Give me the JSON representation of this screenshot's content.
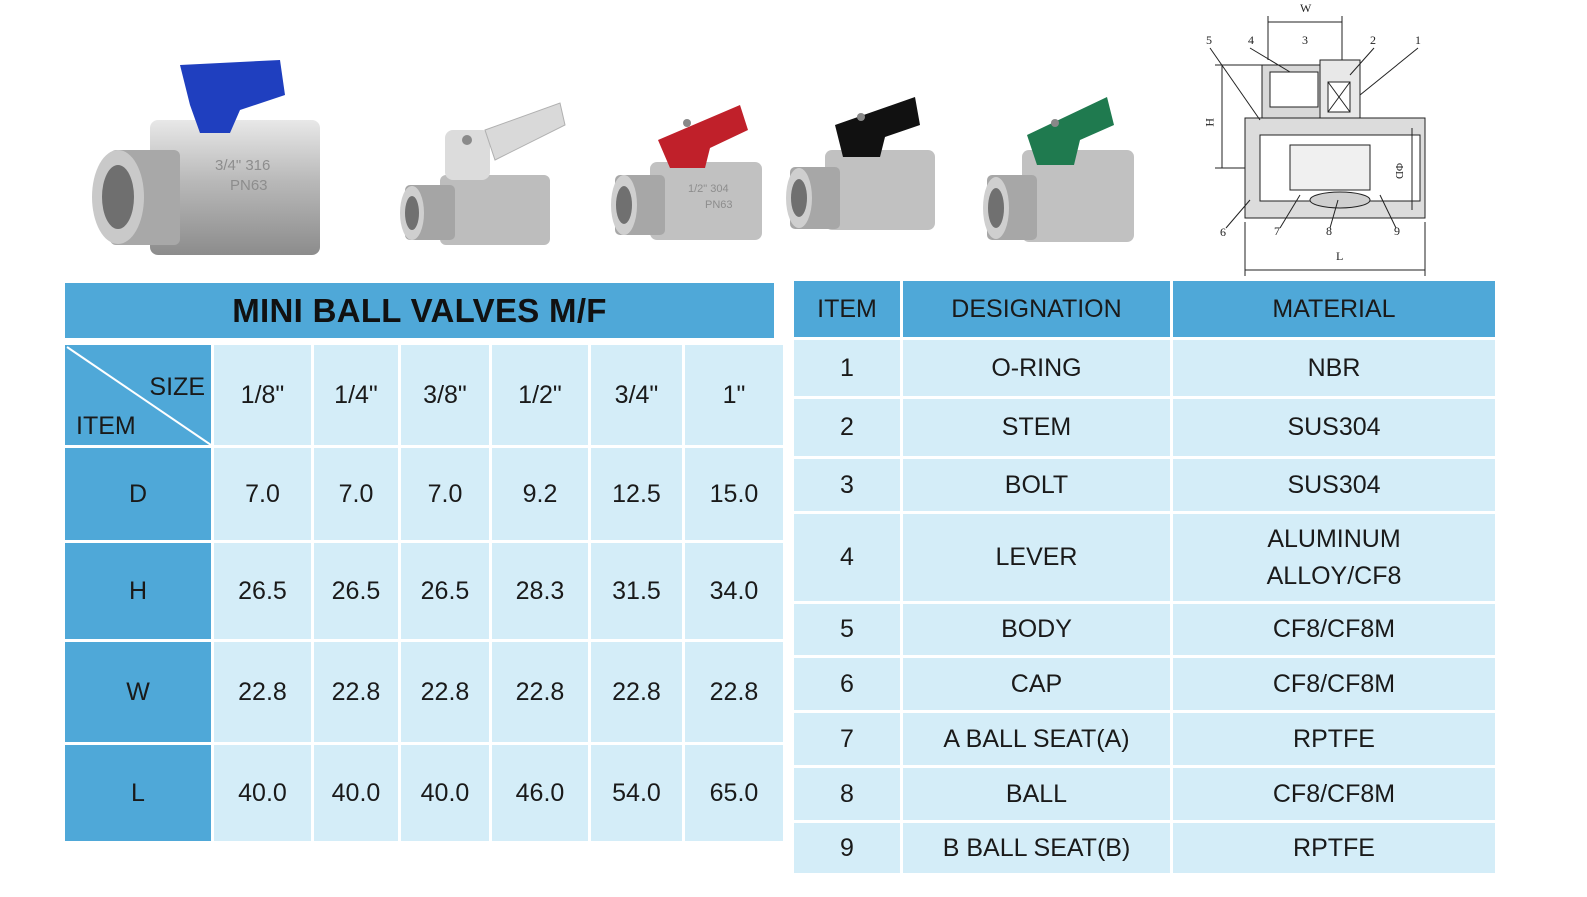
{
  "dimensions_table": {
    "title": "MINI BALL VALVES M/F",
    "corner_size_label": "SIZE",
    "corner_item_label": "ITEM",
    "sizes": [
      "1/8\"",
      "1/4\"",
      "3/8\"",
      "1/2\"",
      "3/4\"",
      "1\""
    ],
    "rows": [
      {
        "item": "D",
        "values": [
          "7.0",
          "7.0",
          "7.0",
          "9.2",
          "12.5",
          "15.0"
        ]
      },
      {
        "item": "H",
        "values": [
          "26.5",
          "26.5",
          "26.5",
          "28.3",
          "31.5",
          "34.0"
        ]
      },
      {
        "item": "W",
        "values": [
          "22.8",
          "22.8",
          "22.8",
          "22.8",
          "22.8",
          "22.8"
        ]
      },
      {
        "item": "L",
        "values": [
          "40.0",
          "40.0",
          "40.0",
          "46.0",
          "54.0",
          "65.0"
        ]
      }
    ]
  },
  "materials_table": {
    "headers": [
      "ITEM",
      "DESIGNATION",
      "MATERIAL"
    ],
    "rows": [
      {
        "item": "1",
        "designation": "O-RING",
        "material": "NBR"
      },
      {
        "item": "2",
        "designation": "STEM",
        "material": "SUS304"
      },
      {
        "item": "3",
        "designation": "BOLT",
        "material": "SUS304"
      },
      {
        "item": "4",
        "designation": "LEVER",
        "material": "ALUMINUM ALLOY/CF8"
      },
      {
        "item": "5",
        "designation": "BODY",
        "material": "CF8/CF8M"
      },
      {
        "item": "6",
        "designation": "CAP",
        "material": "CF8/CF8M"
      },
      {
        "item": "7",
        "designation": "A BALL SEAT(A)",
        "material": "RPTFE"
      },
      {
        "item": "8",
        "designation": "BALL",
        "material": "CF8/CF8M"
      },
      {
        "item": "9",
        "designation": "B BALL SEAT(B)",
        "material": "RPTFE"
      }
    ]
  },
  "product_photos": [
    {
      "handle_color": "#1f3fbf",
      "body_marking_1": "3/4\" 316",
      "body_marking_2": "PN63"
    },
    {
      "handle_color": "#d9d9d9",
      "body_marking_1": "",
      "body_marking_2": ""
    },
    {
      "handle_color": "#c0202a",
      "body_marking_1": "1/2\" 304",
      "body_marking_2": "PN63"
    },
    {
      "handle_color": "#111111",
      "body_marking_1": "",
      "body_marking_2": ""
    },
    {
      "handle_color": "#1f7a4f",
      "body_marking_1": "",
      "body_marking_2": ""
    }
  ],
  "drawing_labels": {
    "width": "W",
    "height": "H",
    "length": "L",
    "diameter": "ΦD",
    "callouts": [
      "1",
      "2",
      "3",
      "4",
      "5",
      "6",
      "7",
      "8",
      "9"
    ]
  },
  "colors": {
    "header_blue": "#4fa8d8",
    "cell_light_blue": "#d4edf8"
  }
}
